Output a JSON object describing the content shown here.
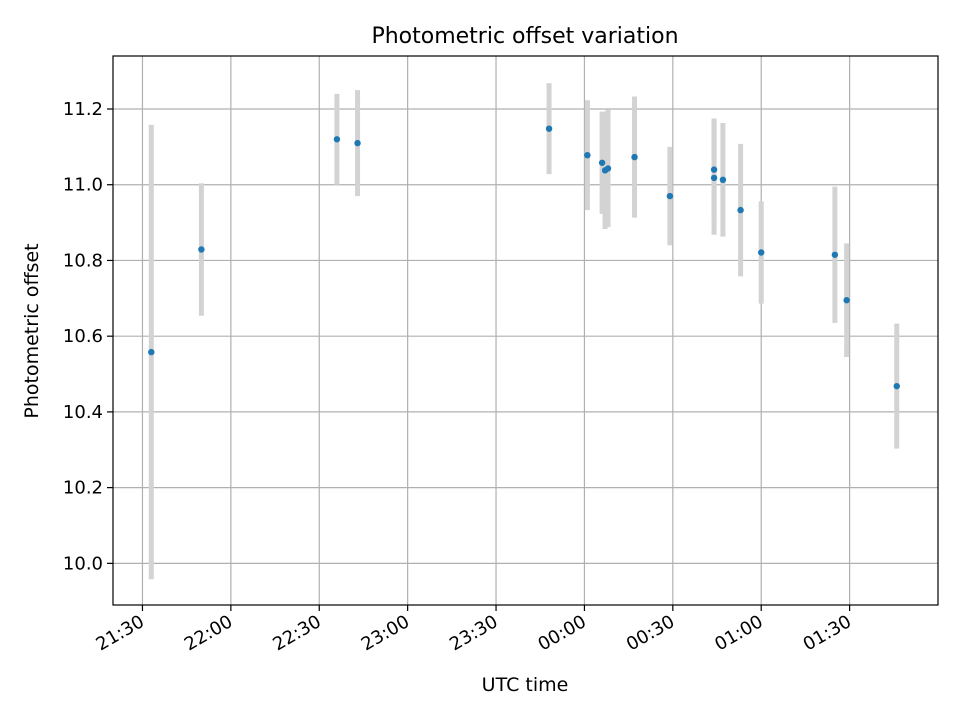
{
  "chart_data": {
    "type": "scatter",
    "title": "Photometric offset variation",
    "xlabel": "UTC time",
    "ylabel": "Photometric offset",
    "x_ticks": [
      "21:30",
      "22:00",
      "22:30",
      "23:00",
      "23:30",
      "00:00",
      "00:30",
      "01:00",
      "01:30"
    ],
    "y_ticks": [
      "10.0",
      "10.2",
      "10.4",
      "10.6",
      "10.8",
      "11.0",
      "11.2"
    ],
    "xlim": [
      "21:20",
      "02:00"
    ],
    "ylim": [
      9.89,
      11.34
    ],
    "grid": true,
    "marker_color": "#1f77b4",
    "errorbar_color": "#d3d3d3",
    "points": [
      {
        "x": "21:33",
        "y": 10.558,
        "err": 0.6
      },
      {
        "x": "21:50",
        "y": 10.829,
        "err": 0.175
      },
      {
        "x": "22:36",
        "y": 11.12,
        "err": 0.12
      },
      {
        "x": "22:43",
        "y": 11.11,
        "err": 0.14
      },
      {
        "x": "23:48",
        "y": 11.148,
        "err": 0.12
      },
      {
        "x": "00:01",
        "y": 11.078,
        "err": 0.145
      },
      {
        "x": "00:06",
        "y": 11.058,
        "err": 0.135
      },
      {
        "x": "00:07",
        "y": 11.038,
        "err": 0.155
      },
      {
        "x": "00:08",
        "y": 11.043,
        "err": 0.155
      },
      {
        "x": "00:17",
        "y": 11.073,
        "err": 0.16
      },
      {
        "x": "00:29",
        "y": 10.97,
        "err": 0.13
      },
      {
        "x": "00:44",
        "y": 11.018,
        "err": 0.15
      },
      {
        "x": "00:44",
        "y": 11.04,
        "err": 0.135
      },
      {
        "x": "00:47",
        "y": 11.013,
        "err": 0.15
      },
      {
        "x": "00:53",
        "y": 10.933,
        "err": 0.175
      },
      {
        "x": "01:00",
        "y": 10.821,
        "err": 0.135
      },
      {
        "x": "01:25",
        "y": 10.815,
        "err": 0.18
      },
      {
        "x": "01:29",
        "y": 10.695,
        "err": 0.15
      },
      {
        "x": "01:46",
        "y": 10.468,
        "err": 0.165
      }
    ]
  }
}
